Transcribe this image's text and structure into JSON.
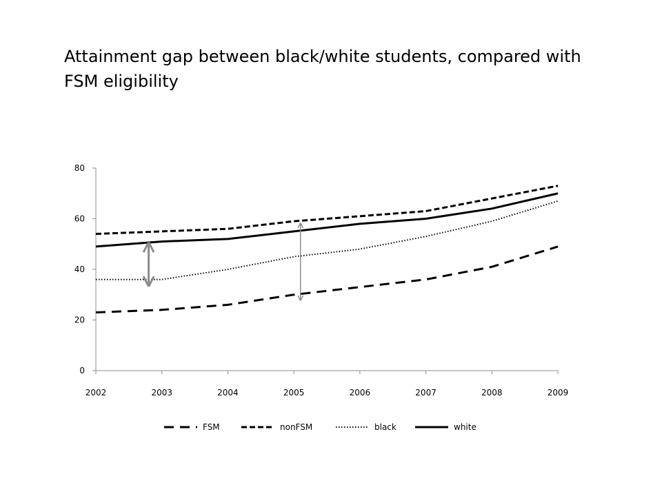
{
  "slide": {
    "title": "Attainment gap between black/white students, compared with FSM eligibility"
  },
  "chart_data": {
    "type": "line",
    "title": "",
    "xlabel": "",
    "ylabel": "",
    "categories": [
      "2002",
      "2003",
      "2004",
      "2005",
      "2006",
      "2007",
      "2008",
      "2009"
    ],
    "y_ticks": [
      0,
      20,
      40,
      60,
      80
    ],
    "ylim": [
      0,
      80
    ],
    "grid": false,
    "legend_position": "bottom",
    "series": [
      {
        "name": "FSM",
        "style": "long-dash",
        "values": [
          23,
          24,
          26,
          30,
          33,
          36,
          41,
          49
        ]
      },
      {
        "name": "nonFSM",
        "style": "short-dash",
        "values": [
          54,
          55,
          56,
          59,
          61,
          63,
          68,
          73
        ]
      },
      {
        "name": "black",
        "style": "dotted",
        "values": [
          36,
          36,
          40,
          45,
          48,
          53,
          59,
          67
        ]
      },
      {
        "name": "white",
        "style": "solid",
        "values": [
          49,
          51,
          52,
          55,
          58,
          60,
          64,
          70
        ]
      }
    ],
    "annotations": [
      {
        "type": "double-arrow",
        "x": 2002.8,
        "y_from": 50,
        "y_to": 34,
        "color": "#8c8c8c"
      },
      {
        "type": "double-arrow",
        "x": 2005.1,
        "y_from": 58,
        "y_to": 28,
        "color": "#8c8c8c"
      }
    ],
    "colors": {
      "line": "#000000",
      "axis": "#8c8c8c",
      "arrow": "#8c8c8c"
    }
  }
}
